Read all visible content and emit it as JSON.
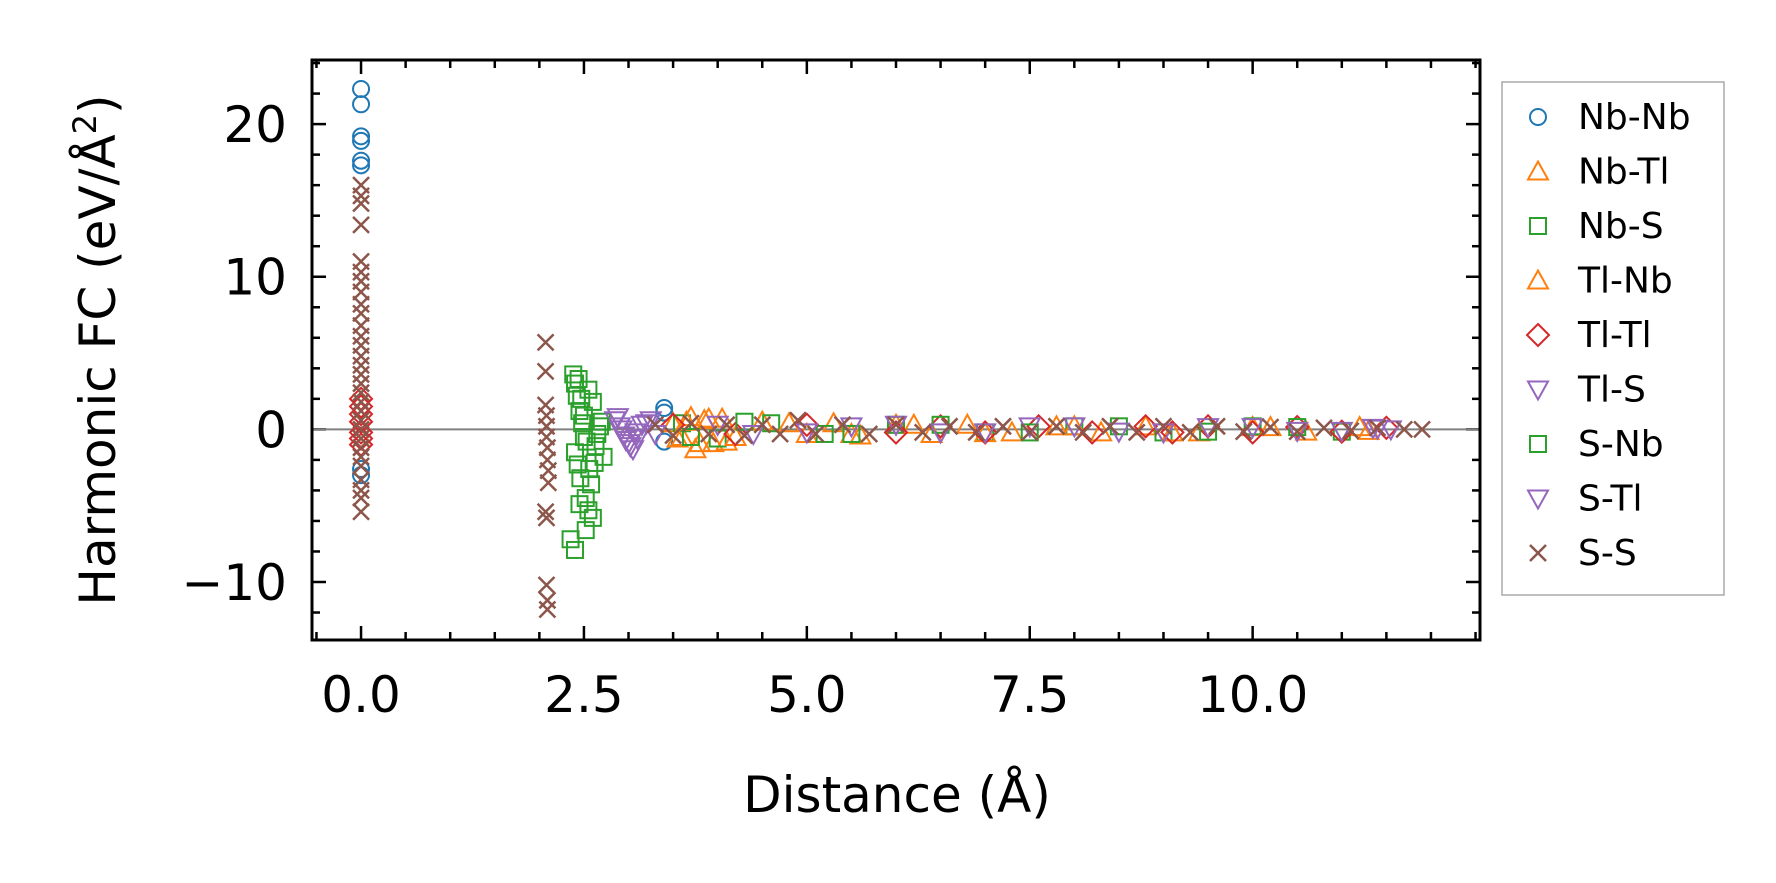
{
  "chart_data": {
    "type": "scatter",
    "title": "",
    "xlabel": "Distance (Å)",
    "ylabel_main": "Harmonic FC (eV/Å",
    "ylabel_sup": "2",
    "ylabel_close": ")",
    "xlim": [
      -0.55,
      12.55
    ],
    "ylim": [
      -13.8,
      24.2
    ],
    "xticks": [
      0.0,
      2.5,
      5.0,
      7.5,
      10.0
    ],
    "xtick_labels": [
      "0.0",
      "2.5",
      "5.0",
      "7.5",
      "10.0"
    ],
    "yticks": [
      -10,
      0,
      10,
      20
    ],
    "ytick_labels": [
      "−10",
      "0",
      "10",
      "20"
    ],
    "grid": false,
    "reference_line_y": 0,
    "legend_position": "outside-right",
    "series": [
      {
        "name": "Nb-Nb",
        "marker": "circle",
        "color": "#1f77b4",
        "points": [
          [
            0.0,
            22.3
          ],
          [
            0.0,
            21.3
          ],
          [
            0.0,
            19.2
          ],
          [
            0.0,
            18.9
          ],
          [
            0.0,
            17.6
          ],
          [
            0.0,
            17.3
          ],
          [
            0.0,
            -2.6
          ],
          [
            0.0,
            -3.0
          ],
          [
            3.4,
            1.4
          ],
          [
            3.4,
            1.1
          ],
          [
            3.4,
            -0.8
          ]
        ]
      },
      {
        "name": "Nb-Tl",
        "marker": "triangle-up",
        "color": "#ff7f0e",
        "points": [
          [
            3.5,
            0.4
          ],
          [
            3.6,
            -0.5
          ],
          [
            3.7,
            0.8
          ],
          [
            3.75,
            -1.3
          ],
          [
            3.85,
            0.6
          ],
          [
            3.95,
            -0.9
          ],
          [
            4.05,
            0.7
          ],
          [
            4.1,
            -0.8
          ],
          [
            4.5,
            0.5
          ],
          [
            5.0,
            -0.3
          ],
          [
            5.3,
            0.4
          ],
          [
            5.6,
            -0.4
          ],
          [
            6.0,
            0.3
          ],
          [
            6.4,
            -0.3
          ],
          [
            6.8,
            0.3
          ],
          [
            7.3,
            -0.2
          ],
          [
            7.8,
            0.2
          ],
          [
            8.3,
            -0.2
          ],
          [
            8.8,
            0.2
          ],
          [
            9.4,
            -0.2
          ],
          [
            10.0,
            0.15
          ],
          [
            10.6,
            -0.15
          ],
          [
            11.2,
            0.15
          ]
        ]
      },
      {
        "name": "Nb-S",
        "marker": "square",
        "color": "#2ca02c",
        "points": [
          [
            2.38,
            3.6
          ],
          [
            2.4,
            3.0
          ],
          [
            2.42,
            2.2
          ],
          [
            2.45,
            1.2
          ],
          [
            2.48,
            0.4
          ],
          [
            2.5,
            -0.5
          ],
          [
            2.4,
            -1.5
          ],
          [
            2.43,
            -2.3
          ],
          [
            2.46,
            -3.2
          ],
          [
            2.52,
            -4.5
          ],
          [
            2.55,
            -5.3
          ],
          [
            2.6,
            -5.8
          ],
          [
            2.35,
            -7.2
          ],
          [
            2.4,
            -7.9
          ],
          [
            2.52,
            -6.6
          ],
          [
            2.55,
            2.6
          ],
          [
            2.6,
            1.8
          ],
          [
            2.63,
            -1.1
          ],
          [
            2.65,
            -0.3
          ],
          [
            2.7,
            0.5
          ],
          [
            2.72,
            -1.8
          ],
          [
            3.6,
            0.4
          ],
          [
            4.0,
            -0.6
          ],
          [
            4.6,
            0.4
          ],
          [
            5.2,
            -0.3
          ],
          [
            6.0,
            0.3
          ],
          [
            7.0,
            -0.2
          ],
          [
            8.0,
            0.2
          ],
          [
            9.0,
            -0.2
          ],
          [
            10.0,
            0.2
          ],
          [
            11.0,
            -0.15
          ]
        ]
      },
      {
        "name": "Tl-Nb",
        "marker": "triangle-up",
        "color": "#ff7f0e",
        "points": [
          [
            3.55,
            -0.6
          ],
          [
            3.65,
            0.5
          ],
          [
            3.8,
            -0.9
          ],
          [
            3.9,
            0.7
          ],
          [
            4.2,
            -0.5
          ],
          [
            4.8,
            0.4
          ],
          [
            5.5,
            -0.3
          ],
          [
            6.2,
            0.3
          ],
          [
            7.0,
            -0.25
          ],
          [
            8.0,
            0.2
          ],
          [
            9.1,
            -0.2
          ],
          [
            10.2,
            0.15
          ],
          [
            11.3,
            -0.1
          ]
        ]
      },
      {
        "name": "Tl-Tl",
        "marker": "diamond",
        "color": "#d62728",
        "points": [
          [
            0.0,
            2.0
          ],
          [
            0.0,
            1.5
          ],
          [
            0.0,
            1.0
          ],
          [
            0.0,
            0.5
          ],
          [
            0.0,
            -0.2
          ],
          [
            0.0,
            -0.6
          ],
          [
            0.0,
            -1.0
          ],
          [
            3.5,
            0.3
          ],
          [
            4.2,
            -0.3
          ],
          [
            5.0,
            0.3
          ],
          [
            6.0,
            -0.2
          ],
          [
            6.5,
            0.2
          ],
          [
            7.0,
            -0.2
          ],
          [
            7.6,
            0.2
          ],
          [
            8.2,
            -0.2
          ],
          [
            8.8,
            0.2
          ],
          [
            9.1,
            -0.2
          ],
          [
            9.5,
            0.2
          ],
          [
            10.0,
            -0.2
          ],
          [
            10.5,
            0.15
          ],
          [
            11.0,
            -0.15
          ],
          [
            11.5,
            0.1
          ]
        ]
      },
      {
        "name": "Tl-S",
        "marker": "triangle-down",
        "color": "#9467bd",
        "points": [
          [
            2.85,
            0.6
          ],
          [
            2.9,
            0.2
          ],
          [
            2.95,
            -0.4
          ],
          [
            3.0,
            -0.9
          ],
          [
            3.05,
            -1.3
          ],
          [
            3.1,
            -0.6
          ],
          [
            3.15,
            0.3
          ],
          [
            3.25,
            0.6
          ],
          [
            3.3,
            -0.3
          ],
          [
            4.0,
            0.3
          ],
          [
            5.0,
            -0.2
          ],
          [
            6.0,
            0.3
          ],
          [
            7.0,
            -0.2
          ],
          [
            8.0,
            0.2
          ],
          [
            9.0,
            -0.2
          ],
          [
            10.0,
            0.15
          ],
          [
            11.0,
            -0.1
          ],
          [
            11.35,
            0.1
          ],
          [
            11.55,
            0.0
          ]
        ]
      },
      {
        "name": "S-Nb",
        "marker": "square",
        "color": "#2ca02c",
        "points": [
          [
            2.44,
            3.3
          ],
          [
            2.47,
            2.0
          ],
          [
            2.5,
            0.9
          ],
          [
            2.53,
            -0.8
          ],
          [
            2.56,
            -2.6
          ],
          [
            2.58,
            -3.6
          ],
          [
            2.45,
            -4.9
          ],
          [
            2.62,
            -2.2
          ],
          [
            2.68,
            0.2
          ],
          [
            3.7,
            -0.5
          ],
          [
            4.3,
            0.5
          ],
          [
            5.5,
            -0.3
          ],
          [
            6.5,
            0.3
          ],
          [
            7.5,
            -0.2
          ],
          [
            8.5,
            0.2
          ],
          [
            9.5,
            -0.15
          ],
          [
            10.5,
            0.15
          ]
        ]
      },
      {
        "name": "S-Tl",
        "marker": "triangle-down",
        "color": "#9467bd",
        "points": [
          [
            2.88,
            0.8
          ],
          [
            2.92,
            0.0
          ],
          [
            2.97,
            -0.7
          ],
          [
            3.02,
            -1.1
          ],
          [
            3.08,
            -0.2
          ],
          [
            3.2,
            0.4
          ],
          [
            4.4,
            -0.3
          ],
          [
            5.5,
            0.2
          ],
          [
            6.5,
            -0.2
          ],
          [
            7.5,
            0.2
          ],
          [
            8.5,
            -0.15
          ],
          [
            9.5,
            0.15
          ],
          [
            10.5,
            -0.1
          ],
          [
            11.4,
            0.05
          ]
        ]
      },
      {
        "name": "S-S",
        "marker": "x",
        "color": "#8c564b",
        "points": [
          [
            0.0,
            16.0
          ],
          [
            0.0,
            15.3
          ],
          [
            0.0,
            14.8
          ],
          [
            0.0,
            13.4
          ],
          [
            0.0,
            11.0
          ],
          [
            0.0,
            10.3
          ],
          [
            0.0,
            9.7
          ],
          [
            0.0,
            9.0
          ],
          [
            0.0,
            8.2
          ],
          [
            0.0,
            7.6
          ],
          [
            0.0,
            6.8
          ],
          [
            0.0,
            6.1
          ],
          [
            0.0,
            5.5
          ],
          [
            0.0,
            4.8
          ],
          [
            0.0,
            4.2
          ],
          [
            0.0,
            3.6
          ],
          [
            0.0,
            3.0
          ],
          [
            0.0,
            2.4
          ],
          [
            0.0,
            1.8
          ],
          [
            0.0,
            1.2
          ],
          [
            0.0,
            0.6
          ],
          [
            0.0,
            0.0
          ],
          [
            0.0,
            -0.6
          ],
          [
            0.0,
            -1.2
          ],
          [
            0.0,
            -1.8
          ],
          [
            0.0,
            -2.4
          ],
          [
            0.0,
            -3.3
          ],
          [
            0.0,
            -4.0
          ],
          [
            0.0,
            -4.5
          ],
          [
            0.0,
            -5.4
          ],
          [
            2.07,
            5.7
          ],
          [
            2.07,
            3.8
          ],
          [
            2.07,
            1.6
          ],
          [
            2.08,
            0.9
          ],
          [
            2.08,
            0.2
          ],
          [
            2.08,
            -0.5
          ],
          [
            2.09,
            -1.2
          ],
          [
            2.09,
            -2.0
          ],
          [
            2.1,
            -2.7
          ],
          [
            2.1,
            -3.5
          ],
          [
            2.07,
            -5.4
          ],
          [
            2.08,
            -5.8
          ],
          [
            2.08,
            -10.2
          ],
          [
            2.09,
            -11.2
          ],
          [
            2.09,
            -11.8
          ],
          [
            3.3,
            0.3
          ],
          [
            3.5,
            -0.4
          ],
          [
            3.7,
            0.4
          ],
          [
            3.9,
            -0.3
          ],
          [
            4.1,
            0.3
          ],
          [
            4.3,
            -0.4
          ],
          [
            4.5,
            0.3
          ],
          [
            4.7,
            -0.3
          ],
          [
            4.9,
            0.6
          ],
          [
            5.1,
            -0.3
          ],
          [
            5.4,
            0.3
          ],
          [
            5.7,
            -0.3
          ],
          [
            6.0,
            0.3
          ],
          [
            6.3,
            -0.2
          ],
          [
            6.6,
            0.2
          ],
          [
            6.9,
            -0.2
          ],
          [
            7.2,
            0.2
          ],
          [
            7.5,
            -0.2
          ],
          [
            7.8,
            0.2
          ],
          [
            8.1,
            -0.2
          ],
          [
            8.4,
            0.2
          ],
          [
            8.7,
            -0.2
          ],
          [
            9.0,
            0.2
          ],
          [
            9.3,
            -0.2
          ],
          [
            9.6,
            0.2
          ],
          [
            9.9,
            -0.15
          ],
          [
            10.2,
            0.15
          ],
          [
            10.5,
            -0.15
          ],
          [
            10.8,
            0.1
          ],
          [
            11.1,
            -0.1
          ],
          [
            11.4,
            0.1
          ],
          [
            11.7,
            0.0
          ],
          [
            11.9,
            0.0
          ]
        ]
      }
    ]
  }
}
